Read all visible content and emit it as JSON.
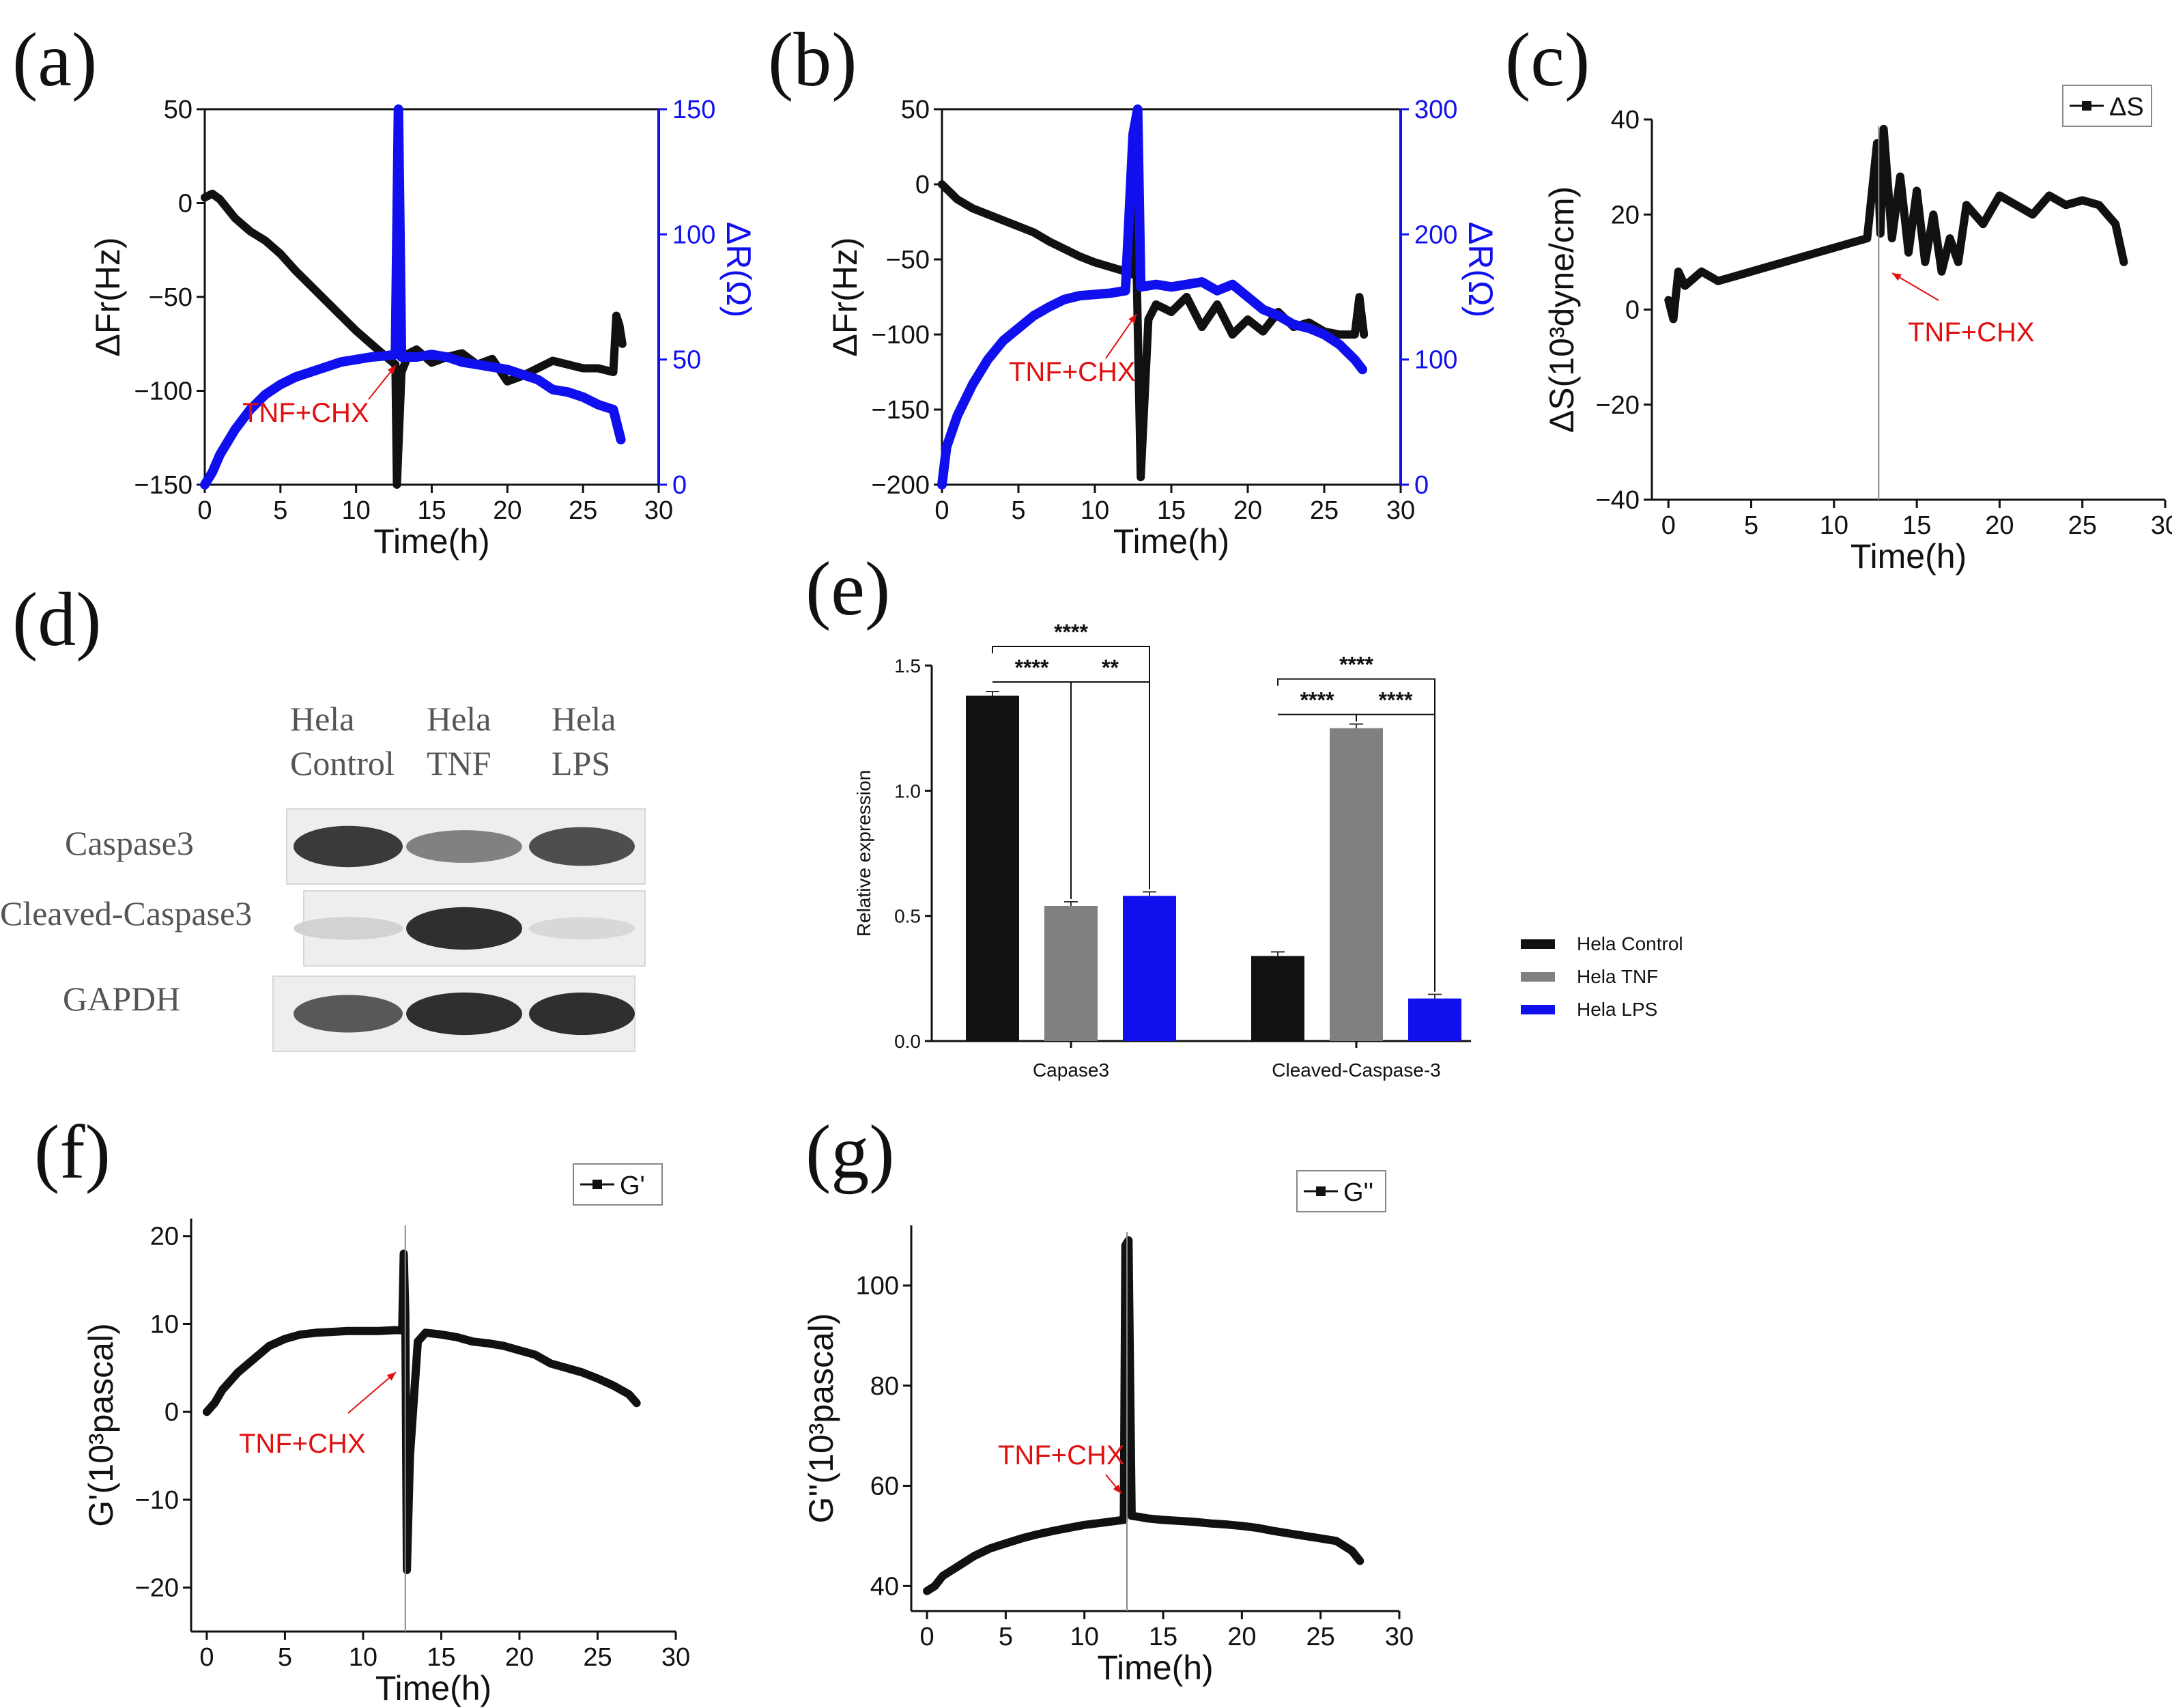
{
  "colors": {
    "black": "#111111",
    "blue": "#1010ee",
    "gray": "#808080",
    "red": "#e01010",
    "bandDark": "#1a1a1a"
  },
  "panels": {
    "a": "(a)",
    "b": "(b)",
    "c": "(c)",
    "d": "(d)",
    "e": "(e)",
    "f": "(f)",
    "g": "(g)"
  },
  "annotation": "TNF+CHX",
  "time_label": "Time(h)",
  "chart_data": [
    {
      "id": "a",
      "type": "line",
      "title": "",
      "xlabel": "Time(h)",
      "ylabel": "ΔFr(Hz)",
      "y2label": "ΔR(Ω)",
      "xlim": [
        0,
        30
      ],
      "ylim": [
        -150,
        50
      ],
      "y2lim": [
        0,
        150
      ],
      "xticks": [
        "0",
        "5",
        "10",
        "15",
        "20",
        "25",
        "30"
      ],
      "yticks": [
        "50",
        "0",
        "−50",
        "−100",
        "−150"
      ],
      "y2ticks": [
        "150",
        "100",
        "50",
        "0"
      ],
      "series": [
        {
          "name": "ΔFr",
          "axis": "left",
          "color": "#111111",
          "x": [
            0,
            0.5,
            1,
            2,
            3,
            4,
            5,
            6,
            7,
            8,
            9,
            10,
            11,
            12,
            12.6,
            12.7,
            12.8,
            13,
            13.5,
            14,
            15,
            16,
            17,
            18,
            19,
            20,
            21,
            22,
            23,
            24,
            25,
            26,
            27,
            27.2,
            27.4,
            27.6
          ],
          "y": [
            3,
            5,
            2,
            -8,
            -15,
            -20,
            -27,
            -36,
            -44,
            -52,
            -60,
            -68,
            -75,
            -82,
            -86,
            -150,
            -130,
            -90,
            -80,
            -78,
            -85,
            -82,
            -80,
            -86,
            -83,
            -95,
            -92,
            -88,
            -84,
            -86,
            -88,
            -88,
            -90,
            -60,
            -65,
            -75
          ]
        },
        {
          "name": "ΔR",
          "axis": "right",
          "color": "#1010ee",
          "x": [
            0,
            0.5,
            1,
            2,
            3,
            4,
            5,
            6,
            7,
            8,
            9,
            10,
            11,
            12,
            12.6,
            12.8,
            13,
            14,
            15,
            16,
            17,
            18,
            19,
            20,
            21,
            22,
            23,
            24,
            25,
            26,
            27,
            27.5
          ],
          "y": [
            0,
            5,
            12,
            22,
            30,
            36,
            40,
            43,
            45,
            47,
            49,
            50,
            51,
            51.5,
            52,
            150,
            51,
            51,
            52,
            51,
            49,
            48,
            47,
            46,
            44,
            42,
            38,
            37,
            35,
            32,
            30,
            18
          ]
        }
      ]
    },
    {
      "id": "b",
      "type": "line",
      "title": "",
      "xlabel": "Time(h)",
      "ylabel": "ΔFr(Hz)",
      "y2label": "ΔR(Ω)",
      "xlim": [
        0,
        30
      ],
      "ylim": [
        -200,
        50
      ],
      "y2lim": [
        0,
        300
      ],
      "xticks": [
        "0",
        "5",
        "10",
        "15",
        "20",
        "25",
        "30"
      ],
      "yticks": [
        "50",
        "0",
        "−50",
        "−100",
        "−150",
        "−200"
      ],
      "y2ticks": [
        "300",
        "200",
        "100",
        "0"
      ],
      "series": [
        {
          "name": "ΔFr",
          "axis": "left",
          "color": "#111111",
          "x": [
            0,
            0.5,
            1,
            2,
            3,
            4,
            5,
            6,
            7,
            8,
            9,
            10,
            11,
            12,
            12.5,
            12.6,
            13,
            13.5,
            14,
            15,
            16,
            17,
            18,
            19,
            20,
            21,
            22,
            23,
            24,
            25,
            26,
            27,
            27.3,
            27.6
          ],
          "y": [
            0,
            -5,
            -10,
            -16,
            -20,
            -24,
            -28,
            -32,
            -38,
            -43,
            -48,
            -52,
            -55,
            -58,
            -60,
            10,
            -195,
            -90,
            -80,
            -85,
            -75,
            -95,
            -80,
            -100,
            -90,
            -98,
            -85,
            -95,
            -92,
            -98,
            -100,
            -100,
            -75,
            -100
          ]
        },
        {
          "name": "ΔR",
          "axis": "right",
          "color": "#1010ee",
          "x": [
            0,
            0.3,
            1,
            2,
            3,
            4,
            5,
            6,
            7,
            8,
            9,
            10,
            11,
            12,
            12.5,
            12.8,
            13,
            14,
            15,
            16,
            17,
            18,
            19,
            20,
            21,
            22,
            23,
            24,
            25,
            26,
            27,
            27.5
          ],
          "y": [
            0,
            30,
            55,
            80,
            100,
            115,
            125,
            135,
            142,
            148,
            151,
            152,
            153,
            155,
            280,
            300,
            158,
            160,
            158,
            160,
            162,
            155,
            160,
            150,
            140,
            135,
            128,
            125,
            120,
            112,
            100,
            92
          ]
        }
      ]
    },
    {
      "id": "c",
      "type": "line",
      "title": "",
      "xlabel": "Time(h)",
      "ylabel": "ΔS(10³dyne/cm)",
      "legend": "ΔS",
      "legend_position": "top-right",
      "xlim": [
        -1,
        30
      ],
      "ylim": [
        -40,
        40
      ],
      "xticks": [
        "0",
        "5",
        "10",
        "15",
        "20",
        "25",
        "30"
      ],
      "yticks": [
        "40",
        "20",
        "0",
        "−20",
        "−40"
      ],
      "series": [
        {
          "name": "ΔS",
          "color": "#111111",
          "x": [
            0,
            0.3,
            0.6,
            1,
            2,
            3,
            4,
            5,
            6,
            7,
            8,
            9,
            10,
            11,
            12,
            12.6,
            12.8,
            13,
            13.5,
            14,
            14.5,
            15,
            15.5,
            16,
            16.5,
            17,
            17.5,
            18,
            19,
            20,
            21,
            22,
            23,
            24,
            25,
            26,
            27,
            27.5
          ],
          "y": [
            2,
            -2,
            8,
            5,
            8,
            6,
            7,
            8,
            9,
            10,
            11,
            12,
            13,
            14,
            15,
            35,
            16,
            38,
            15,
            28,
            12,
            25,
            10,
            20,
            8,
            15,
            10,
            22,
            18,
            24,
            22,
            20,
            24,
            22,
            23,
            22,
            18,
            10
          ]
        }
      ]
    },
    {
      "id": "e",
      "type": "bar",
      "title": "",
      "xlabel": "",
      "ylabel": "Relative expression",
      "ylim": [
        0,
        1.5
      ],
      "yticks": [
        "0.0",
        "0.5",
        "1.0",
        "1.5"
      ],
      "categories": [
        "Capase3",
        "Cleaved-Caspase-3"
      ],
      "series": [
        {
          "name": "Hela Control",
          "color": "#111111",
          "values": [
            1.38,
            0.34
          ]
        },
        {
          "name": "Hela TNF",
          "color": "#808080",
          "values": [
            0.54,
            1.25
          ]
        },
        {
          "name": "Hela LPS",
          "color": "#1010ee",
          "values": [
            0.58,
            0.17
          ]
        }
      ],
      "significance": [
        {
          "group": 0,
          "from": 0,
          "to": 2,
          "label": "****",
          "level": 1
        },
        {
          "group": 0,
          "from": 0,
          "to": 1,
          "label": "****",
          "level": 0
        },
        {
          "group": 0,
          "from": 1,
          "to": 2,
          "label": "**",
          "level": 0
        },
        {
          "group": 1,
          "from": 0,
          "to": 2,
          "label": "****",
          "level": 1
        },
        {
          "group": 1,
          "from": 0,
          "to": 1,
          "label": "****",
          "level": 0
        },
        {
          "group": 1,
          "from": 1,
          "to": 2,
          "label": "****",
          "level": 0
        }
      ]
    },
    {
      "id": "f",
      "type": "line",
      "title": "",
      "xlabel": "Time(h)",
      "ylabel": "G'(10³pascal)",
      "legend": "G'",
      "legend_position": "top-right",
      "xlim": [
        -1,
        30
      ],
      "ylim": [
        -25,
        22
      ],
      "xticks": [
        "0",
        "5",
        "10",
        "15",
        "20",
        "25",
        "30"
      ],
      "yticks": [
        "20",
        "10",
        "0",
        "−10",
        "−20"
      ],
      "series": [
        {
          "name": "G'",
          "color": "#111111",
          "x": [
            0,
            0.5,
            1,
            2,
            3,
            4,
            5,
            6,
            7,
            8,
            9,
            10,
            11,
            12,
            12.5,
            12.6,
            12.7,
            12.8,
            13,
            13.5,
            14,
            15,
            16,
            17,
            18,
            19,
            20,
            21,
            22,
            23,
            24,
            25,
            26,
            27,
            27.5
          ],
          "y": [
            0,
            1,
            2.5,
            4.5,
            6,
            7.5,
            8.3,
            8.8,
            9,
            9.1,
            9.2,
            9.2,
            9.2,
            9.3,
            9.3,
            18,
            11,
            -18,
            -5,
            8,
            9,
            8.8,
            8.5,
            8,
            7.8,
            7.5,
            7,
            6.5,
            5.5,
            5,
            4.5,
            3.8,
            3,
            2,
            1
          ]
        }
      ]
    },
    {
      "id": "g",
      "type": "line",
      "title": "",
      "xlabel": "Time(h)",
      "ylabel": "G''(10³pascal)",
      "legend": "G''",
      "legend_position": "top-right",
      "xlim": [
        -1,
        30
      ],
      "ylim": [
        35,
        112
      ],
      "xticks": [
        "0",
        "5",
        "10",
        "15",
        "20",
        "25",
        "30"
      ],
      "yticks": [
        "100",
        "80",
        "60",
        "40"
      ],
      "series": [
        {
          "name": "G''",
          "color": "#111111",
          "x": [
            0,
            0.5,
            1,
            2,
            3,
            4,
            5,
            6,
            7,
            8,
            9,
            10,
            11,
            12,
            12.5,
            12.6,
            12.8,
            13,
            13.5,
            14,
            15,
            16,
            17,
            18,
            19,
            20,
            21,
            22,
            23,
            24,
            25,
            26,
            27,
            27.5
          ],
          "y": [
            39,
            40,
            42,
            44,
            46,
            47.5,
            48.5,
            49.5,
            50.3,
            51,
            51.6,
            52.2,
            52.6,
            53,
            53.2,
            108,
            109,
            54,
            53.8,
            53.5,
            53.2,
            53,
            52.8,
            52.5,
            52.3,
            52,
            51.6,
            51,
            50.5,
            50,
            49.5,
            49,
            47,
            45
          ]
        }
      ]
    }
  ],
  "blot": {
    "lanes": [
      {
        "line1": "Hela",
        "line2": "Control"
      },
      {
        "line1": "Hela",
        "line2": "TNF"
      },
      {
        "line1": "Hela",
        "line2": "LPS"
      }
    ],
    "rows": [
      {
        "label": "Caspase3",
        "intensity": [
          0.9,
          0.55,
          0.8
        ]
      },
      {
        "label": "Cleaved-Caspase3",
        "intensity": [
          0.15,
          0.95,
          0.12
        ]
      },
      {
        "label": "GAPDH",
        "intensity": [
          0.75,
          0.95,
          0.95
        ]
      }
    ]
  }
}
